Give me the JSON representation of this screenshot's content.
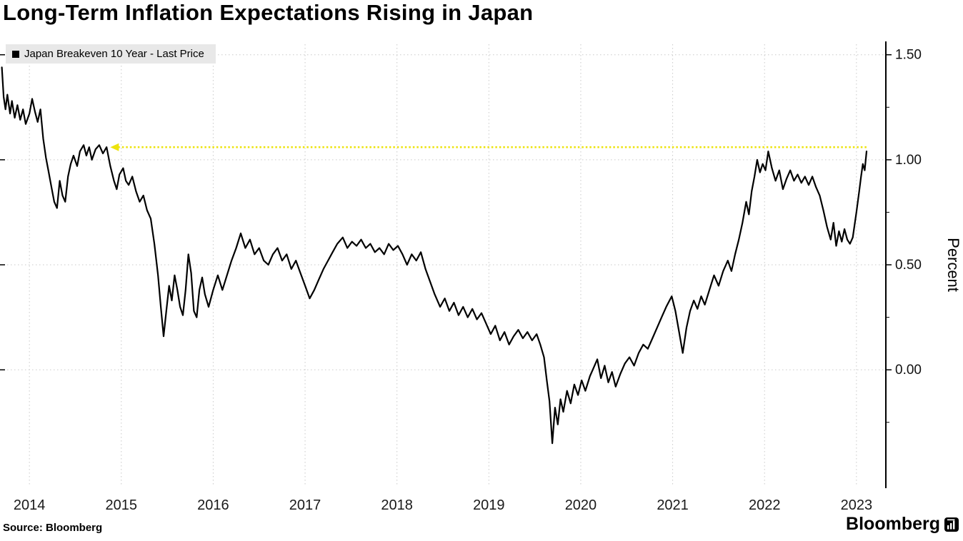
{
  "title": "Long-Term Inflation Expectations Rising in Japan",
  "legend": {
    "label": "Japan Breakeven 10 Year - Last Price",
    "marker_color": "#000000"
  },
  "source": "Source: Bloomberg",
  "brand": {
    "name": "Bloomberg"
  },
  "chart_data": {
    "type": "line",
    "title": "Long-Term Inflation Expectations Rising in Japan",
    "xlabel": "",
    "ylabel": "Percent",
    "xlim": [
      2013.68,
      2023.32
    ],
    "ylim": [
      -0.55,
      1.55
    ],
    "grid": {
      "vertical": true,
      "horizontal": true,
      "style": "dotted"
    },
    "legend_position": "top-left",
    "x_ticks": [
      {
        "value": 2014,
        "label": "2014"
      },
      {
        "value": 2015,
        "label": "2015"
      },
      {
        "value": 2016,
        "label": "2016"
      },
      {
        "value": 2017,
        "label": "2017"
      },
      {
        "value": 2018,
        "label": "2018"
      },
      {
        "value": 2019,
        "label": "2019"
      },
      {
        "value": 2020,
        "label": "2020"
      },
      {
        "value": 2021,
        "label": "2021"
      },
      {
        "value": 2022,
        "label": "2022"
      },
      {
        "value": 2023,
        "label": "2023"
      }
    ],
    "y_ticks": [
      {
        "value": 1.5,
        "label": "1.50"
      },
      {
        "value": 1.0,
        "label": "1.00"
      },
      {
        "value": 0.5,
        "label": "0.50"
      },
      {
        "value": 0.0,
        "label": "0.00"
      }
    ],
    "y_minor_ticks": [
      1.25,
      0.75,
      0.25,
      -0.25
    ],
    "annotation": {
      "type": "hline",
      "value": 1.06,
      "x_start": 2014.88,
      "x_end": 2023.13,
      "color": "#ede30b",
      "style": "dotted",
      "arrow": "left"
    },
    "series": [
      {
        "name": "Japan Breakeven 10 Year - Last Price",
        "color": "#000000",
        "points": [
          [
            2013.7,
            1.44
          ],
          [
            2013.72,
            1.3
          ],
          [
            2013.74,
            1.24
          ],
          [
            2013.76,
            1.31
          ],
          [
            2013.79,
            1.22
          ],
          [
            2013.81,
            1.28
          ],
          [
            2013.84,
            1.2
          ],
          [
            2013.87,
            1.26
          ],
          [
            2013.9,
            1.19
          ],
          [
            2013.93,
            1.24
          ],
          [
            2013.96,
            1.17
          ],
          [
            2014.0,
            1.22
          ],
          [
            2014.03,
            1.29
          ],
          [
            2014.06,
            1.23
          ],
          [
            2014.09,
            1.18
          ],
          [
            2014.12,
            1.24
          ],
          [
            2014.15,
            1.1
          ],
          [
            2014.18,
            1.01
          ],
          [
            2014.21,
            0.94
          ],
          [
            2014.24,
            0.87
          ],
          [
            2014.27,
            0.8
          ],
          [
            2014.3,
            0.77
          ],
          [
            2014.33,
            0.9
          ],
          [
            2014.36,
            0.83
          ],
          [
            2014.39,
            0.8
          ],
          [
            2014.42,
            0.92
          ],
          [
            2014.45,
            0.98
          ],
          [
            2014.48,
            1.02
          ],
          [
            2014.52,
            0.97
          ],
          [
            2014.55,
            1.04
          ],
          [
            2014.59,
            1.07
          ],
          [
            2014.62,
            1.02
          ],
          [
            2014.65,
            1.06
          ],
          [
            2014.68,
            1.0
          ],
          [
            2014.72,
            1.05
          ],
          [
            2014.76,
            1.07
          ],
          [
            2014.8,
            1.03
          ],
          [
            2014.84,
            1.06
          ],
          [
            2014.88,
            0.97
          ],
          [
            2014.92,
            0.9
          ],
          [
            2014.95,
            0.86
          ],
          [
            2014.98,
            0.93
          ],
          [
            2015.02,
            0.96
          ],
          [
            2015.05,
            0.9
          ],
          [
            2015.08,
            0.88
          ],
          [
            2015.12,
            0.92
          ],
          [
            2015.16,
            0.85
          ],
          [
            2015.2,
            0.8
          ],
          [
            2015.24,
            0.83
          ],
          [
            2015.28,
            0.76
          ],
          [
            2015.32,
            0.72
          ],
          [
            2015.36,
            0.6
          ],
          [
            2015.4,
            0.45
          ],
          [
            2015.43,
            0.3
          ],
          [
            2015.46,
            0.16
          ],
          [
            2015.49,
            0.28
          ],
          [
            2015.52,
            0.4
          ],
          [
            2015.55,
            0.33
          ],
          [
            2015.58,
            0.45
          ],
          [
            2015.61,
            0.38
          ],
          [
            2015.64,
            0.3
          ],
          [
            2015.67,
            0.26
          ],
          [
            2015.7,
            0.38
          ],
          [
            2015.73,
            0.55
          ],
          [
            2015.76,
            0.46
          ],
          [
            2015.79,
            0.28
          ],
          [
            2015.82,
            0.25
          ],
          [
            2015.85,
            0.38
          ],
          [
            2015.88,
            0.44
          ],
          [
            2015.91,
            0.36
          ],
          [
            2015.95,
            0.3
          ],
          [
            2016.0,
            0.38
          ],
          [
            2016.05,
            0.45
          ],
          [
            2016.1,
            0.38
          ],
          [
            2016.15,
            0.45
          ],
          [
            2016.2,
            0.52
          ],
          [
            2016.25,
            0.58
          ],
          [
            2016.3,
            0.65
          ],
          [
            2016.35,
            0.58
          ],
          [
            2016.4,
            0.62
          ],
          [
            2016.45,
            0.55
          ],
          [
            2016.5,
            0.58
          ],
          [
            2016.55,
            0.52
          ],
          [
            2016.6,
            0.5
          ],
          [
            2016.65,
            0.55
          ],
          [
            2016.7,
            0.58
          ],
          [
            2016.75,
            0.52
          ],
          [
            2016.8,
            0.55
          ],
          [
            2016.85,
            0.48
          ],
          [
            2016.9,
            0.52
          ],
          [
            2016.95,
            0.46
          ],
          [
            2017.0,
            0.4
          ],
          [
            2017.05,
            0.34
          ],
          [
            2017.1,
            0.38
          ],
          [
            2017.15,
            0.43
          ],
          [
            2017.2,
            0.48
          ],
          [
            2017.25,
            0.52
          ],
          [
            2017.3,
            0.56
          ],
          [
            2017.35,
            0.6
          ],
          [
            2017.41,
            0.63
          ],
          [
            2017.46,
            0.58
          ],
          [
            2017.51,
            0.61
          ],
          [
            2017.56,
            0.59
          ],
          [
            2017.61,
            0.62
          ],
          [
            2017.66,
            0.58
          ],
          [
            2017.71,
            0.6
          ],
          [
            2017.76,
            0.56
          ],
          [
            2017.81,
            0.58
          ],
          [
            2017.86,
            0.55
          ],
          [
            2017.91,
            0.6
          ],
          [
            2017.96,
            0.57
          ],
          [
            2018.01,
            0.59
          ],
          [
            2018.06,
            0.55
          ],
          [
            2018.11,
            0.5
          ],
          [
            2018.16,
            0.55
          ],
          [
            2018.21,
            0.52
          ],
          [
            2018.26,
            0.56
          ],
          [
            2018.31,
            0.48
          ],
          [
            2018.36,
            0.42
          ],
          [
            2018.41,
            0.36
          ],
          [
            2018.47,
            0.3
          ],
          [
            2018.52,
            0.34
          ],
          [
            2018.57,
            0.28
          ],
          [
            2018.62,
            0.32
          ],
          [
            2018.67,
            0.26
          ],
          [
            2018.72,
            0.3
          ],
          [
            2018.77,
            0.25
          ],
          [
            2018.82,
            0.29
          ],
          [
            2018.87,
            0.24
          ],
          [
            2018.92,
            0.27
          ],
          [
            2018.97,
            0.22
          ],
          [
            2019.02,
            0.17
          ],
          [
            2019.07,
            0.21
          ],
          [
            2019.12,
            0.14
          ],
          [
            2019.17,
            0.18
          ],
          [
            2019.22,
            0.12
          ],
          [
            2019.27,
            0.16
          ],
          [
            2019.32,
            0.19
          ],
          [
            2019.37,
            0.15
          ],
          [
            2019.42,
            0.18
          ],
          [
            2019.47,
            0.14
          ],
          [
            2019.52,
            0.17
          ],
          [
            2019.56,
            0.12
          ],
          [
            2019.6,
            0.06
          ],
          [
            2019.63,
            -0.05
          ],
          [
            2019.66,
            -0.15
          ],
          [
            2019.69,
            -0.35
          ],
          [
            2019.72,
            -0.18
          ],
          [
            2019.75,
            -0.26
          ],
          [
            2019.78,
            -0.14
          ],
          [
            2019.81,
            -0.2
          ],
          [
            2019.85,
            -0.1
          ],
          [
            2019.89,
            -0.16
          ],
          [
            2019.93,
            -0.07
          ],
          [
            2019.97,
            -0.12
          ],
          [
            2020.01,
            -0.05
          ],
          [
            2020.05,
            -0.1
          ],
          [
            2020.1,
            -0.03
          ],
          [
            2020.14,
            0.01
          ],
          [
            2020.18,
            0.05
          ],
          [
            2020.22,
            -0.04
          ],
          [
            2020.26,
            0.02
          ],
          [
            2020.3,
            -0.06
          ],
          [
            2020.34,
            -0.01
          ],
          [
            2020.38,
            -0.08
          ],
          [
            2020.43,
            -0.02
          ],
          [
            2020.48,
            0.03
          ],
          [
            2020.53,
            0.06
          ],
          [
            2020.58,
            0.02
          ],
          [
            2020.63,
            0.08
          ],
          [
            2020.68,
            0.12
          ],
          [
            2020.73,
            0.1
          ],
          [
            2020.78,
            0.15
          ],
          [
            2020.83,
            0.2
          ],
          [
            2020.88,
            0.25
          ],
          [
            2020.93,
            0.3
          ],
          [
            2020.99,
            0.35
          ],
          [
            2021.03,
            0.28
          ],
          [
            2021.07,
            0.18
          ],
          [
            2021.11,
            0.08
          ],
          [
            2021.15,
            0.2
          ],
          [
            2021.19,
            0.28
          ],
          [
            2021.23,
            0.33
          ],
          [
            2021.27,
            0.29
          ],
          [
            2021.31,
            0.35
          ],
          [
            2021.35,
            0.31
          ],
          [
            2021.4,
            0.38
          ],
          [
            2021.45,
            0.45
          ],
          [
            2021.5,
            0.4
          ],
          [
            2021.55,
            0.47
          ],
          [
            2021.6,
            0.52
          ],
          [
            2021.64,
            0.47
          ],
          [
            2021.68,
            0.55
          ],
          [
            2021.72,
            0.62
          ],
          [
            2021.76,
            0.7
          ],
          [
            2021.8,
            0.8
          ],
          [
            2021.83,
            0.74
          ],
          [
            2021.86,
            0.85
          ],
          [
            2021.89,
            0.92
          ],
          [
            2021.92,
            1.0
          ],
          [
            2021.95,
            0.94
          ],
          [
            2021.98,
            0.98
          ],
          [
            2022.01,
            0.95
          ],
          [
            2022.04,
            1.04
          ],
          [
            2022.08,
            0.96
          ],
          [
            2022.12,
            0.9
          ],
          [
            2022.16,
            0.95
          ],
          [
            2022.2,
            0.86
          ],
          [
            2022.24,
            0.91
          ],
          [
            2022.28,
            0.95
          ],
          [
            2022.32,
            0.9
          ],
          [
            2022.36,
            0.93
          ],
          [
            2022.4,
            0.89
          ],
          [
            2022.44,
            0.92
          ],
          [
            2022.48,
            0.88
          ],
          [
            2022.52,
            0.92
          ],
          [
            2022.56,
            0.87
          ],
          [
            2022.6,
            0.83
          ],
          [
            2022.64,
            0.76
          ],
          [
            2022.68,
            0.68
          ],
          [
            2022.72,
            0.62
          ],
          [
            2022.75,
            0.7
          ],
          [
            2022.78,
            0.59
          ],
          [
            2022.81,
            0.66
          ],
          [
            2022.84,
            0.61
          ],
          [
            2022.87,
            0.67
          ],
          [
            2022.9,
            0.62
          ],
          [
            2022.93,
            0.6
          ],
          [
            2022.96,
            0.63
          ],
          [
            2023.0,
            0.75
          ],
          [
            2023.03,
            0.85
          ],
          [
            2023.05,
            0.92
          ],
          [
            2023.07,
            0.98
          ],
          [
            2023.09,
            0.95
          ],
          [
            2023.11,
            1.04
          ]
        ]
      }
    ]
  }
}
